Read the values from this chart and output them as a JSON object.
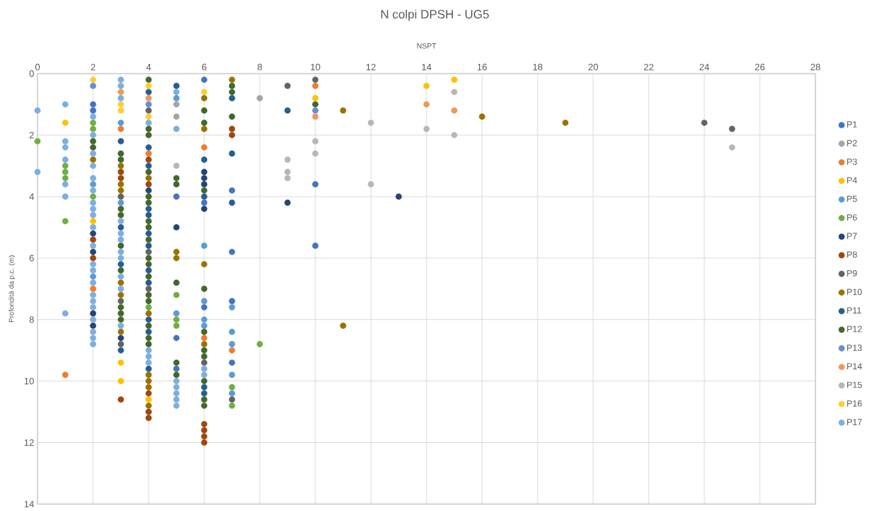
{
  "chart_data": {
    "type": "scatter",
    "title": "N colpi  DPSH - UG5",
    "xlabel": "NSPT",
    "ylabel": "Profondità da p.c. (m)",
    "xlim": [
      0,
      28
    ],
    "xticks": [
      0,
      2,
      4,
      6,
      8,
      10,
      12,
      14,
      16,
      18,
      20,
      22,
      24,
      26,
      28
    ],
    "ylim": [
      14,
      0
    ],
    "yticks": [
      0,
      2,
      4,
      6,
      8,
      10,
      12,
      14
    ],
    "grid": true,
    "legend": "right",
    "marker": "circle",
    "series": [
      {
        "name": "P1",
        "color": "#4472c4",
        "x": [
          2,
          2,
          5,
          5,
          5,
          6,
          6,
          6,
          7,
          7,
          7,
          7,
          10,
          10
        ],
        "values": [
          1.0,
          1.2,
          4.0,
          8.6,
          9.6,
          0.2,
          4.2,
          7.6,
          3.8,
          5.8,
          7.4,
          9.4,
          3.6,
          5.6
        ]
      },
      {
        "name": "P2",
        "color": "#a5a5a5",
        "x": [
          5,
          5,
          8
        ],
        "values": [
          1.0,
          1.4,
          0.8
        ]
      },
      {
        "name": "P3",
        "color": "#ed7d31",
        "x": [
          1,
          2,
          3,
          4,
          6,
          6,
          7,
          10
        ],
        "values": [
          9.8,
          7.0,
          1.8,
          2.6,
          2.4,
          8.6,
          9.0,
          0.4
        ]
      },
      {
        "name": "P4",
        "color": "#ffc000",
        "x": [
          1,
          2,
          3,
          3,
          4,
          10,
          14,
          15
        ],
        "values": [
          1.6,
          4.8,
          9.4,
          10.0,
          10.6,
          0.8,
          0.4,
          0.2
        ]
      },
      {
        "name": "P5",
        "color": "#5b9bd5",
        "x": [
          2,
          2,
          3,
          3,
          5,
          5,
          6,
          6,
          6,
          6,
          7,
          7,
          7,
          7,
          7
        ],
        "values": [
          3.6,
          6.6,
          1.6,
          4.2,
          0.8,
          7.8,
          5.6,
          7.4,
          8.0,
          8.2,
          7.6,
          8.4,
          8.8,
          9.8,
          10.4
        ]
      },
      {
        "name": "P6",
        "color": "#70ad47",
        "x": [
          0,
          1,
          1,
          1,
          1,
          2,
          2,
          2,
          4,
          5,
          5,
          5,
          7,
          7,
          8
        ],
        "values": [
          2.2,
          3.0,
          3.2,
          3.4,
          4.8,
          1.6,
          1.8,
          4.0,
          7.6,
          7.2,
          8.0,
          8.2,
          10.2,
          10.8,
          8.8
        ]
      },
      {
        "name": "P7",
        "color": "#264478",
        "x": [
          2,
          2,
          2,
          2,
          3,
          4,
          5,
          6,
          6,
          6,
          6,
          9,
          13
        ],
        "values": [
          5.2,
          5.8,
          7.8,
          8.2,
          8.6,
          3.8,
          5.0,
          3.2,
          3.4,
          3.6,
          4.4,
          4.2,
          4.0
        ]
      },
      {
        "name": "P8",
        "color": "#9e480e",
        "x": [
          2,
          2,
          3,
          3,
          3,
          4,
          4,
          4,
          4,
          4,
          6,
          6,
          6,
          6,
          7,
          7
        ],
        "values": [
          5.4,
          6.0,
          3.2,
          3.4,
          10.6,
          2.8,
          3.6,
          10.4,
          11.0,
          11.2,
          11.4,
          11.6,
          11.8,
          12.0,
          1.8,
          2.0
        ]
      },
      {
        "name": "P9",
        "color": "#636363",
        "x": [
          3,
          3,
          3,
          4,
          4,
          4,
          6,
          7,
          9,
          10,
          24,
          25
        ],
        "values": [
          4.0,
          7.4,
          8.8,
          1.2,
          5.8,
          7.0,
          9.4,
          10.6,
          0.4,
          0.2,
          1.6,
          1.8
        ]
      },
      {
        "name": "P10",
        "color": "#997300",
        "x": [
          2,
          3,
          3,
          3,
          3,
          3,
          3,
          4,
          4,
          4,
          4,
          4,
          4,
          5,
          5,
          6,
          6,
          6,
          6,
          7,
          11,
          11,
          16,
          19
        ],
        "values": [
          2.8,
          3.0,
          3.6,
          3.8,
          6.8,
          7.2,
          8.4,
          3.4,
          7.8,
          9.8,
          10.0,
          10.2,
          10.8,
          5.8,
          6.0,
          0.8,
          1.8,
          6.2,
          8.8,
          0.2,
          1.2,
          8.2,
          1.4,
          1.6
        ]
      },
      {
        "name": "P11",
        "color": "#255e91",
        "x": [
          3,
          3,
          3,
          3,
          4,
          4,
          4,
          4,
          4,
          4,
          4,
          4,
          4,
          4,
          4,
          4,
          5,
          6,
          6,
          6,
          6,
          7,
          7,
          7,
          9
        ],
        "values": [
          2.2,
          5.0,
          6.2,
          9.0,
          0.6,
          2.4,
          3.0,
          4.4,
          4.6,
          5.2,
          5.6,
          6.4,
          6.8,
          8.0,
          8.4,
          9.6,
          0.4,
          2.8,
          4.0,
          10.2,
          10.4,
          0.8,
          2.6,
          4.2,
          1.2
        ]
      },
      {
        "name": "P12",
        "color": "#43682b",
        "x": [
          2,
          2,
          3,
          3,
          3,
          3,
          3,
          3,
          3,
          3,
          3,
          4,
          4,
          4,
          4,
          4,
          4,
          4,
          4,
          4,
          4,
          4,
          4,
          4,
          4,
          4,
          4,
          4,
          5,
          5,
          5,
          5,
          5,
          6,
          6,
          6,
          6,
          6,
          6,
          6,
          6,
          6,
          6,
          7,
          7,
          7,
          10
        ],
        "values": [
          2.2,
          2.4,
          2.6,
          2.8,
          4.4,
          4.6,
          5.6,
          6.4,
          7.6,
          7.8,
          8.0,
          0.2,
          1.8,
          2.0,
          3.2,
          4.0,
          4.2,
          4.8,
          5.0,
          5.4,
          6.0,
          6.2,
          6.6,
          7.2,
          7.4,
          8.2,
          8.6,
          8.8,
          3.4,
          3.6,
          6.8,
          9.4,
          9.8,
          1.2,
          1.6,
          3.8,
          7.0,
          8.4,
          9.0,
          9.2,
          10.0,
          10.6,
          10.8,
          0.4,
          0.6,
          1.4,
          1.0
        ]
      },
      {
        "name": "P13",
        "color": "#698ed0",
        "x": [
          2,
          4,
          10
        ],
        "values": [
          0.4,
          1.0,
          1.2
        ]
      },
      {
        "name": "P14",
        "color": "#f1975a",
        "x": [
          3,
          4,
          10,
          14,
          15
        ],
        "values": [
          0.6,
          0.8,
          1.4,
          1.0,
          1.2
        ]
      },
      {
        "name": "P15",
        "color": "#b7b7b7",
        "x": [
          5,
          9,
          9,
          9,
          10,
          10,
          12,
          12,
          14,
          15,
          15,
          25
        ],
        "values": [
          3.0,
          2.8,
          3.2,
          3.4,
          2.2,
          2.6,
          1.6,
          3.6,
          1.8,
          0.6,
          2.0,
          2.4
        ]
      },
      {
        "name": "P16",
        "color": "#ffcd33",
        "x": [
          2,
          3,
          3,
          4,
          4,
          6
        ],
        "values": [
          0.2,
          1.0,
          1.2,
          0.4,
          1.4,
          0.6
        ]
      },
      {
        "name": "P17",
        "color": "#7cafdd",
        "x": [
          0,
          0,
          1,
          1,
          1,
          1,
          1,
          1,
          1,
          2,
          2,
          2,
          2,
          2,
          2,
          2,
          2,
          2,
          2,
          2,
          2,
          2,
          2,
          2,
          2,
          2,
          2,
          2,
          2,
          2,
          3,
          3,
          3,
          3,
          3,
          3,
          3,
          3,
          3,
          3,
          3,
          4,
          4,
          4,
          4,
          5,
          5,
          5,
          5,
          5,
          5,
          5,
          6,
          6
        ],
        "values": [
          1.2,
          3.2,
          1.0,
          2.2,
          2.4,
          2.8,
          3.6,
          4.0,
          7.8,
          1.4,
          2.0,
          2.6,
          3.0,
          3.4,
          3.8,
          4.2,
          4.4,
          4.6,
          5.0,
          5.6,
          6.2,
          6.4,
          6.8,
          7.2,
          7.4,
          7.6,
          8.0,
          8.4,
          8.6,
          8.8,
          0.2,
          0.4,
          0.8,
          4.8,
          5.2,
          5.4,
          5.8,
          6.0,
          6.6,
          7.0,
          8.2,
          1.6,
          9.0,
          9.2,
          9.4,
          0.6,
          1.8,
          10.0,
          10.2,
          10.4,
          10.6,
          10.8,
          9.6,
          9.8
        ]
      }
    ]
  }
}
